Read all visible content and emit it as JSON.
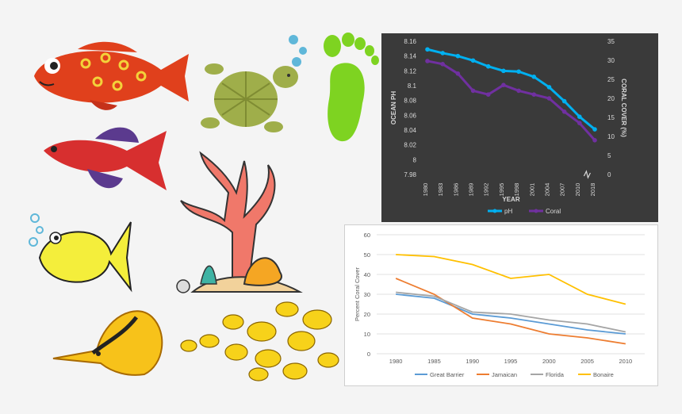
{
  "chart_data": [
    {
      "type": "line",
      "title": "",
      "xlabel": "YEAR",
      "ylabel": "OCEAN PH",
      "y2label": "CORAL COVER (%)",
      "categories": [
        "1980",
        "1983",
        "1986",
        "1989",
        "1992",
        "1995",
        "1998",
        "2001",
        "2004",
        "2007",
        "2010",
        "2018"
      ],
      "ylim": [
        7.98,
        8.16
      ],
      "yticks": [
        "7.98",
        "8",
        "8.02",
        "8.04",
        "8.06",
        "8.08",
        "8.1",
        "8.12",
        "8.14",
        "8.16"
      ],
      "y2lim": [
        0,
        35
      ],
      "y2ticks": [
        "0",
        "5",
        "10",
        "15",
        "20",
        "25",
        "30",
        "35"
      ],
      "axis": "y",
      "series": [
        {
          "name": "pH",
          "axis": "y",
          "color": "#00b0f0",
          "values": [
            8.149,
            8.144,
            8.14,
            8.134,
            8.126,
            8.12,
            8.119,
            8.112,
            8.098,
            8.079,
            8.058,
            8.041
          ]
        },
        {
          "name": "Coral",
          "axis": "y2",
          "color": "#7030a0",
          "values": [
            29.8,
            29.0,
            26.5,
            22.0,
            21.0,
            23.5,
            22.0,
            21.0,
            20.0,
            16.5,
            13.5,
            9.0
          ]
        }
      ],
      "legend": "bottom",
      "grid": false
    },
    {
      "type": "line",
      "title": "",
      "xlabel": "",
      "ylabel": "Percent Coral Cover",
      "categories": [
        "1980",
        "1985",
        "1990",
        "1995",
        "2000",
        "2005",
        "2010"
      ],
      "ylim": [
        0,
        60
      ],
      "yticks": [
        "0",
        "10",
        "20",
        "30",
        "40",
        "50",
        "60"
      ],
      "series": [
        {
          "name": "Great Barrier",
          "color": "#5b9bd5",
          "values": [
            30,
            28,
            20,
            18,
            15,
            12,
            10
          ]
        },
        {
          "name": "Jamaican",
          "color": "#ed7d31",
          "values": [
            38,
            30,
            18,
            15,
            10,
            8,
            5
          ]
        },
        {
          "name": "Florida",
          "color": "#a5a5a5",
          "values": [
            31,
            29,
            21,
            20,
            17,
            15,
            11
          ]
        },
        {
          "name": "Bonaire",
          "color": "#ffc000",
          "values": [
            50,
            49,
            45,
            38,
            40,
            30,
            25
          ]
        }
      ],
      "legend": "bottom",
      "grid": true
    }
  ]
}
